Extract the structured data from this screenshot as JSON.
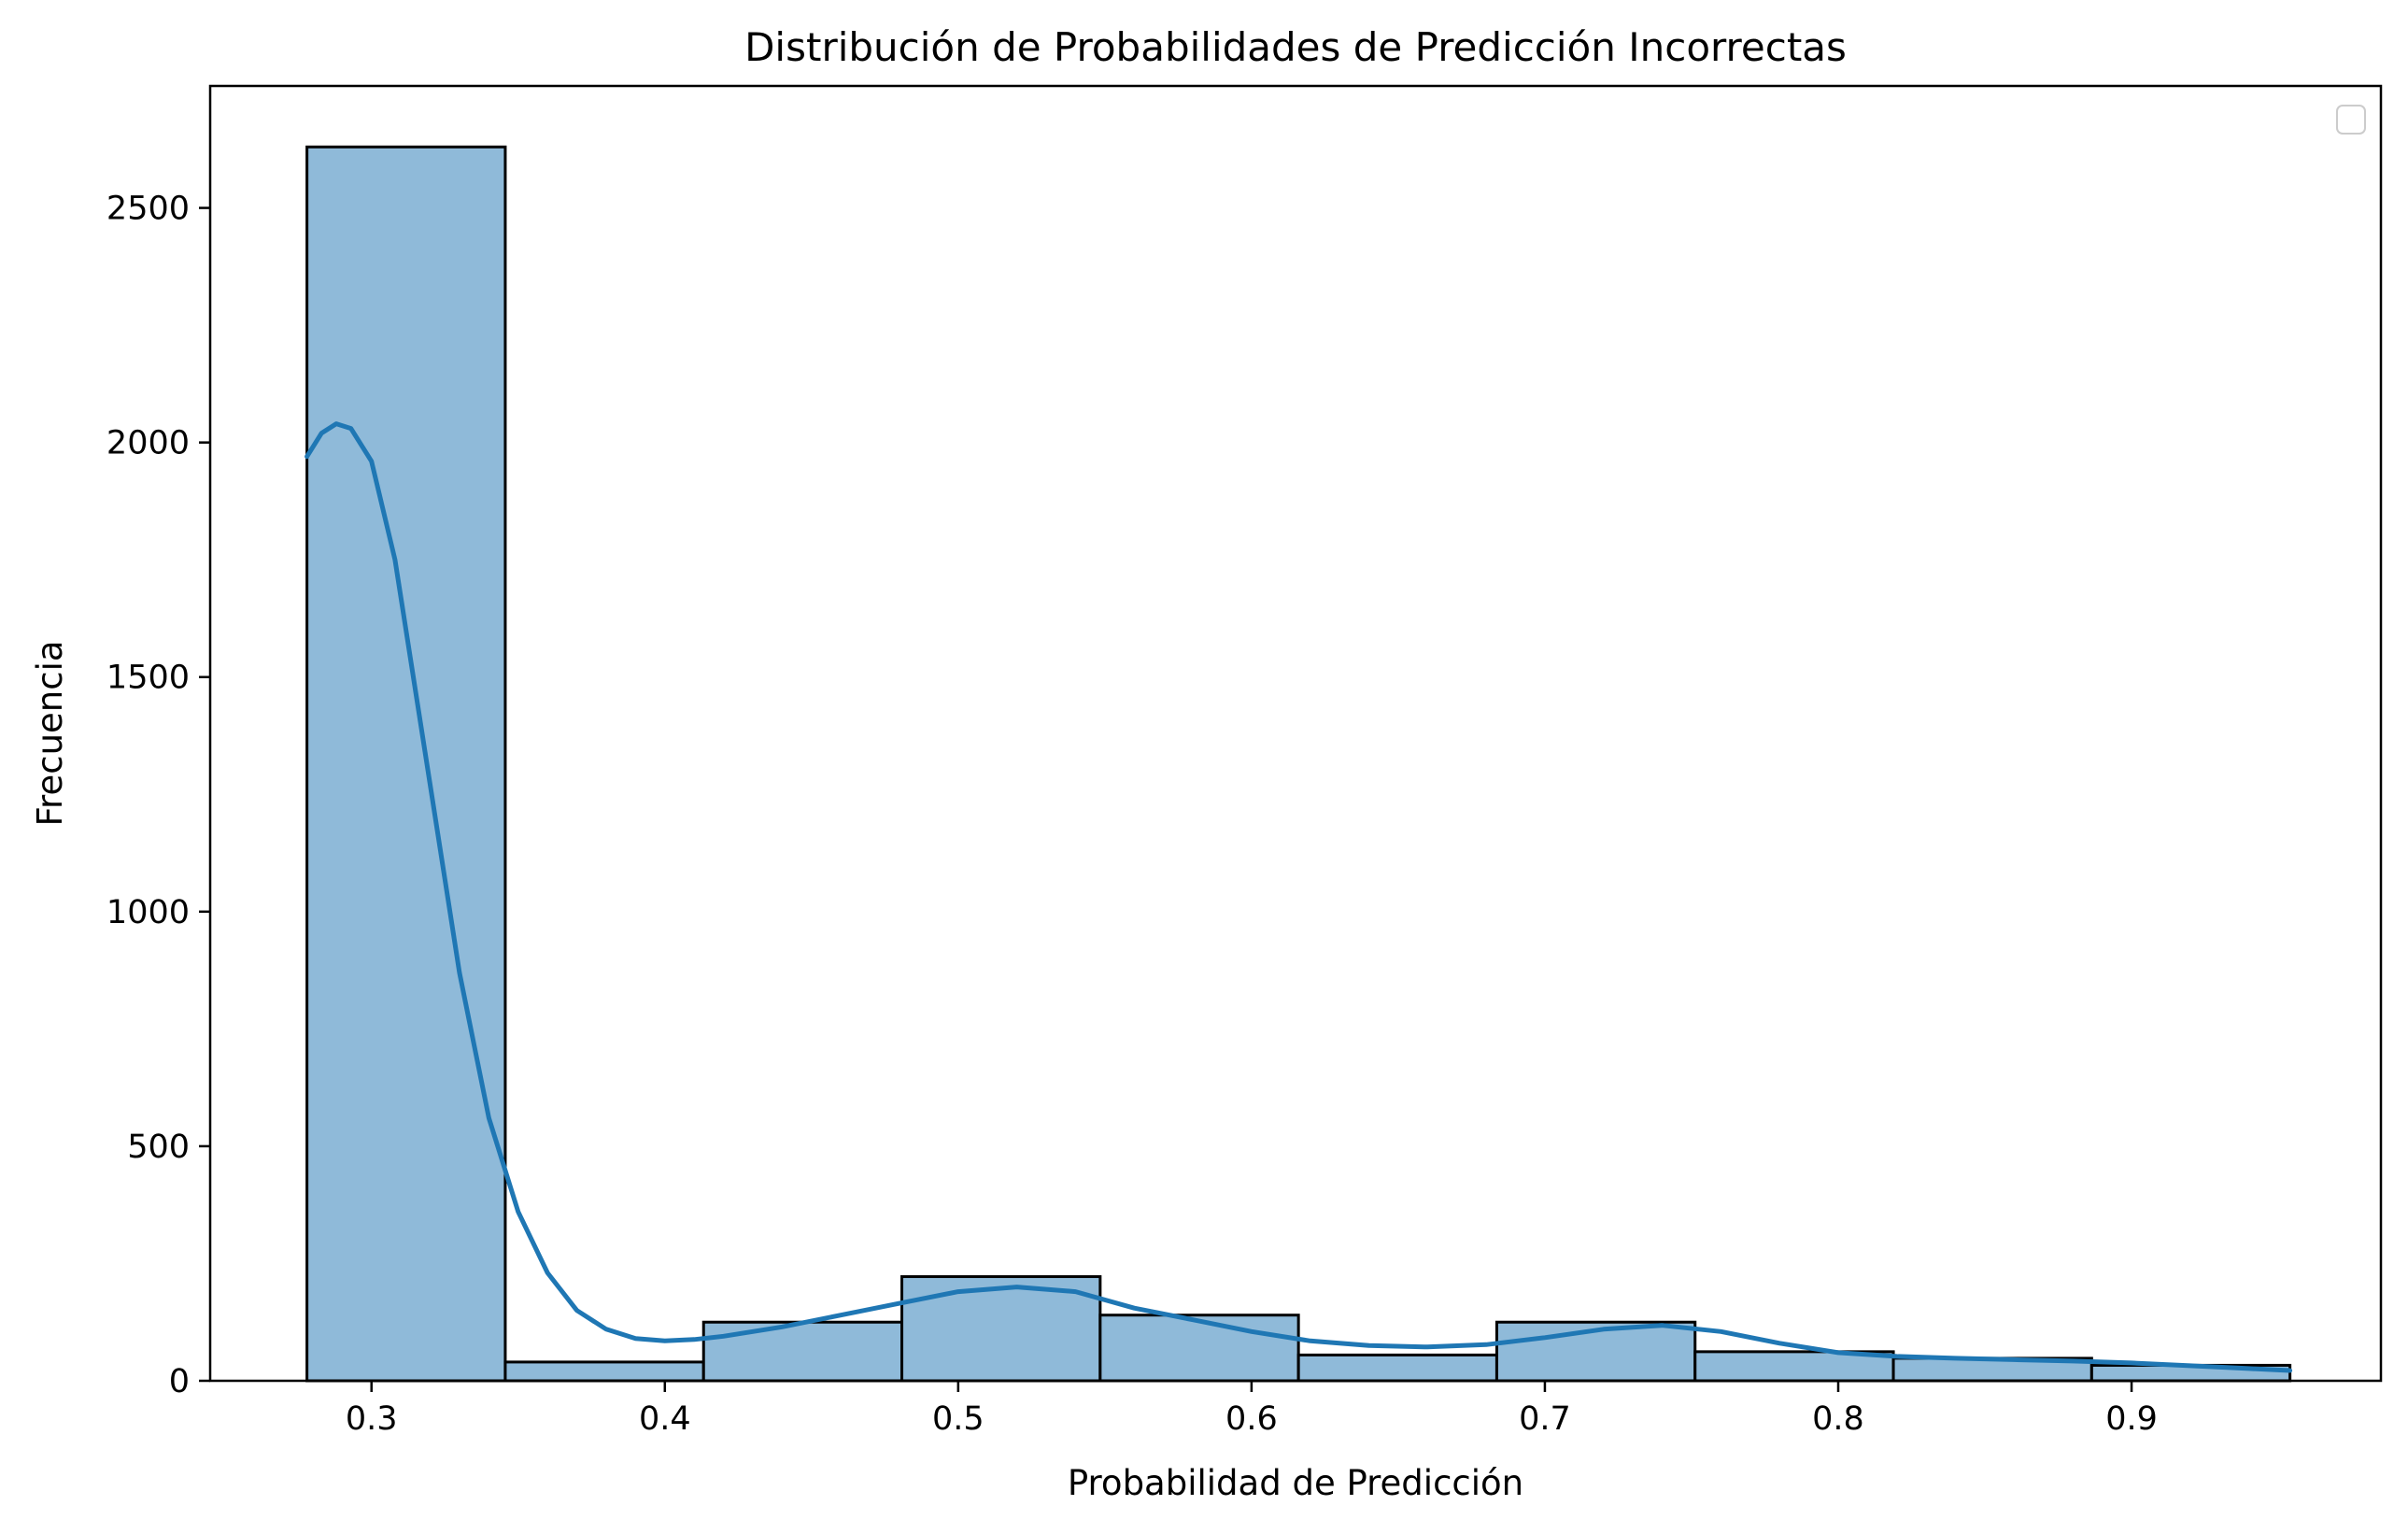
{
  "chart_data": {
    "type": "bar",
    "subtype": "histogram-with-kde",
    "title": "Distribución de Probabilidades de Predicción Incorrectas",
    "xlabel": "Probabilidad de Predicción",
    "ylabel": "Frecuencia",
    "xlim": [
      0.245,
      0.985
    ],
    "ylim": [
      0,
      2760
    ],
    "xticks": [
      0.3,
      0.4,
      0.5,
      0.6,
      0.7,
      0.8,
      0.9
    ],
    "xtick_labels": [
      "0.3",
      "0.4",
      "0.5",
      "0.6",
      "0.7",
      "0.8",
      "0.9"
    ],
    "yticks": [
      0,
      500,
      1000,
      1500,
      2000,
      2500
    ],
    "ytick_labels": [
      "0",
      "500",
      "1000",
      "1500",
      "2000",
      "2500"
    ],
    "grid": false,
    "legend": {
      "placement": "top-right",
      "entries": []
    },
    "colors": {
      "bar_fill": "#8fbad9",
      "bar_edge": "#000000",
      "kde_line": "#1f77b4"
    },
    "bins": [
      {
        "start": 0.278,
        "end": 0.3456,
        "count": 2630
      },
      {
        "start": 0.3456,
        "end": 0.4132,
        "count": 40
      },
      {
        "start": 0.4132,
        "end": 0.4808,
        "count": 125
      },
      {
        "start": 0.4808,
        "end": 0.5484,
        "count": 222
      },
      {
        "start": 0.5484,
        "end": 0.616,
        "count": 140
      },
      {
        "start": 0.616,
        "end": 0.6836,
        "count": 55
      },
      {
        "start": 0.6836,
        "end": 0.7512,
        "count": 125
      },
      {
        "start": 0.7512,
        "end": 0.8188,
        "count": 62
      },
      {
        "start": 0.8188,
        "end": 0.8864,
        "count": 48
      },
      {
        "start": 0.8864,
        "end": 0.954,
        "count": 33
      }
    ],
    "series": [
      {
        "type": "kde-line",
        "x": [
          0.278,
          0.283,
          0.288,
          0.293,
          0.3,
          0.308,
          0.318,
          0.33,
          0.34,
          0.35,
          0.36,
          0.37,
          0.38,
          0.39,
          0.4,
          0.41,
          0.42,
          0.44,
          0.46,
          0.48,
          0.5,
          0.52,
          0.54,
          0.56,
          0.58,
          0.6,
          0.62,
          0.64,
          0.66,
          0.68,
          0.7,
          0.72,
          0.74,
          0.76,
          0.78,
          0.8,
          0.82,
          0.84,
          0.86,
          0.88,
          0.9,
          0.92,
          0.94,
          0.954
        ],
        "y": [
          1970,
          2020,
          2040,
          2030,
          1960,
          1750,
          1350,
          870,
          560,
          360,
          230,
          150,
          110,
          90,
          85,
          88,
          95,
          115,
          140,
          165,
          190,
          200,
          190,
          155,
          130,
          105,
          85,
          75,
          72,
          77,
          92,
          110,
          118,
          105,
          80,
          60,
          52,
          48,
          45,
          42,
          38,
          32,
          26,
          22
        ]
      }
    ]
  }
}
